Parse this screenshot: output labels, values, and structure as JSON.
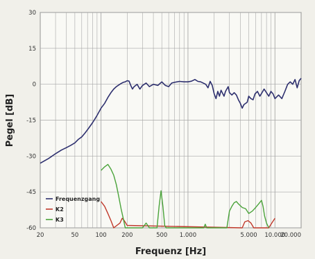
{
  "chart_data": {
    "type": "line",
    "xlabel": "Frequenz [Hz]",
    "ylabel": "Pegel [dB]",
    "x_scale": "log",
    "xlim": [
      20,
      20000
    ],
    "ylim": [
      -60,
      30
    ],
    "grid": true,
    "legend_position": "bottom-left",
    "x_ticks": [
      {
        "value": 20,
        "label": "20"
      },
      {
        "value": 50,
        "label": "50"
      },
      {
        "value": 100,
        "label": "100"
      },
      {
        "value": 200,
        "label": "200"
      },
      {
        "value": 500,
        "label": "500"
      },
      {
        "value": 1000,
        "label": "1.000"
      },
      {
        "value": 5000,
        "label": "5.000"
      },
      {
        "value": 10000,
        "label": "10.000"
      },
      {
        "value": 20000,
        "label": "20.000"
      }
    ],
    "y_ticks": [
      {
        "value": 30,
        "label": "30"
      },
      {
        "value": 15,
        "label": "15"
      },
      {
        "value": 0,
        "label": "0"
      },
      {
        "value": -15,
        "label": "-15"
      },
      {
        "value": -30,
        "label": "-30"
      },
      {
        "value": -45,
        "label": "-45"
      },
      {
        "value": -60,
        "label": "-60"
      }
    ],
    "series": [
      {
        "name": "Frequenzgang",
        "color": "#2d2f6e",
        "points": [
          [
            20,
            -33
          ],
          [
            25,
            -31
          ],
          [
            30,
            -29
          ],
          [
            35,
            -27.5
          ],
          [
            40,
            -26.5
          ],
          [
            45,
            -25.5
          ],
          [
            50,
            -24.5
          ],
          [
            55,
            -23
          ],
          [
            60,
            -22
          ],
          [
            65,
            -20.5
          ],
          [
            70,
            -19
          ],
          [
            75,
            -17.5
          ],
          [
            80,
            -16
          ],
          [
            85,
            -14.5
          ],
          [
            90,
            -13
          ],
          [
            95,
            -11.5
          ],
          [
            100,
            -10
          ],
          [
            110,
            -8
          ],
          [
            120,
            -5.5
          ],
          [
            130,
            -3.5
          ],
          [
            140,
            -2
          ],
          [
            150,
            -1
          ],
          [
            160,
            -0.3
          ],
          [
            170,
            0.3
          ],
          [
            180,
            0.8
          ],
          [
            190,
            1
          ],
          [
            200,
            1.5
          ],
          [
            210,
            1.3
          ],
          [
            220,
            -0.5
          ],
          [
            230,
            -2
          ],
          [
            240,
            -1
          ],
          [
            260,
            0
          ],
          [
            280,
            -2
          ],
          [
            300,
            -0.5
          ],
          [
            330,
            0.5
          ],
          [
            360,
            -1
          ],
          [
            400,
            0
          ],
          [
            450,
            -0.5
          ],
          [
            500,
            1
          ],
          [
            550,
            -0.5
          ],
          [
            600,
            -1
          ],
          [
            650,
            0.5
          ],
          [
            700,
            0.8
          ],
          [
            800,
            1.2
          ],
          [
            900,
            1
          ],
          [
            1000,
            1
          ],
          [
            1100,
            1.3
          ],
          [
            1200,
            2
          ],
          [
            1300,
            1.2
          ],
          [
            1400,
            1
          ],
          [
            1600,
            0
          ],
          [
            1700,
            -1.5
          ],
          [
            1800,
            1.2
          ],
          [
            1900,
            -0.5
          ],
          [
            2000,
            -4
          ],
          [
            2100,
            -6
          ],
          [
            2200,
            -3
          ],
          [
            2300,
            -5
          ],
          [
            2400,
            -2.5
          ],
          [
            2600,
            -5
          ],
          [
            2700,
            -3
          ],
          [
            2900,
            -1
          ],
          [
            3000,
            -3.5
          ],
          [
            3200,
            -4.5
          ],
          [
            3400,
            -3.5
          ],
          [
            3600,
            -4.5
          ],
          [
            3800,
            -6.5
          ],
          [
            4000,
            -8
          ],
          [
            4200,
            -10
          ],
          [
            4400,
            -8.5
          ],
          [
            4800,
            -7.5
          ],
          [
            5000,
            -5
          ],
          [
            5300,
            -6
          ],
          [
            5600,
            -6.5
          ],
          [
            5900,
            -4
          ],
          [
            6300,
            -3
          ],
          [
            6700,
            -5
          ],
          [
            7100,
            -3.5
          ],
          [
            7500,
            -2
          ],
          [
            8000,
            -3.5
          ],
          [
            8500,
            -5
          ],
          [
            9000,
            -3
          ],
          [
            9500,
            -4
          ],
          [
            10000,
            -6
          ],
          [
            11000,
            -4.5
          ],
          [
            12000,
            -6
          ],
          [
            13000,
            -3
          ],
          [
            14000,
            0
          ],
          [
            15000,
            1
          ],
          [
            16000,
            0
          ],
          [
            17000,
            2
          ],
          [
            18000,
            -1.5
          ],
          [
            19000,
            1.5
          ],
          [
            20000,
            2.5
          ]
        ]
      },
      {
        "name": "K2",
        "color": "#c0392b",
        "points": [
          [
            100,
            -49
          ],
          [
            110,
            -51
          ],
          [
            120,
            -54
          ],
          [
            130,
            -57
          ],
          [
            140,
            -60
          ],
          [
            165,
            -58
          ],
          [
            175,
            -56
          ],
          [
            185,
            -57
          ],
          [
            200,
            -59
          ],
          [
            4200,
            -60
          ],
          [
            4500,
            -57.5
          ],
          [
            4900,
            -57
          ],
          [
            5300,
            -58
          ],
          [
            5700,
            -60
          ],
          [
            8500,
            -60
          ],
          [
            9200,
            -58
          ],
          [
            10000,
            -56
          ]
        ]
      },
      {
        "name": "K3",
        "color": "#4aa33a",
        "points": [
          [
            100,
            -36
          ],
          [
            110,
            -34.5
          ],
          [
            120,
            -33.5
          ],
          [
            130,
            -35.5
          ],
          [
            140,
            -38
          ],
          [
            150,
            -42
          ],
          [
            160,
            -47
          ],
          [
            170,
            -52
          ],
          [
            180,
            -56
          ],
          [
            190,
            -60
          ],
          [
            300,
            -60
          ],
          [
            330,
            -58
          ],
          [
            345,
            -59
          ],
          [
            360,
            -60
          ],
          [
            440,
            -60
          ],
          [
            465,
            -51
          ],
          [
            490,
            -44.5
          ],
          [
            515,
            -51
          ],
          [
            540,
            -59
          ],
          [
            560,
            -60
          ],
          [
            1520,
            -60
          ],
          [
            1580,
            -58.5
          ],
          [
            1640,
            -60
          ],
          [
            2800,
            -60
          ],
          [
            3000,
            -53
          ],
          [
            3200,
            -51
          ],
          [
            3400,
            -49.5
          ],
          [
            3600,
            -49
          ],
          [
            3800,
            -50
          ],
          [
            4200,
            -51.5
          ],
          [
            4600,
            -52
          ],
          [
            5000,
            -54
          ],
          [
            5500,
            -53
          ],
          [
            6000,
            -51.5
          ],
          [
            6500,
            -50
          ],
          [
            7000,
            -48.5
          ],
          [
            7300,
            -51
          ],
          [
            7600,
            -55
          ],
          [
            8000,
            -58
          ],
          [
            8500,
            -60
          ]
        ]
      }
    ]
  },
  "colors": {
    "background": "#f1f0ea",
    "plot_background": "#f9f9f5",
    "grid": "#a7a7a7",
    "frame": "#777777"
  }
}
